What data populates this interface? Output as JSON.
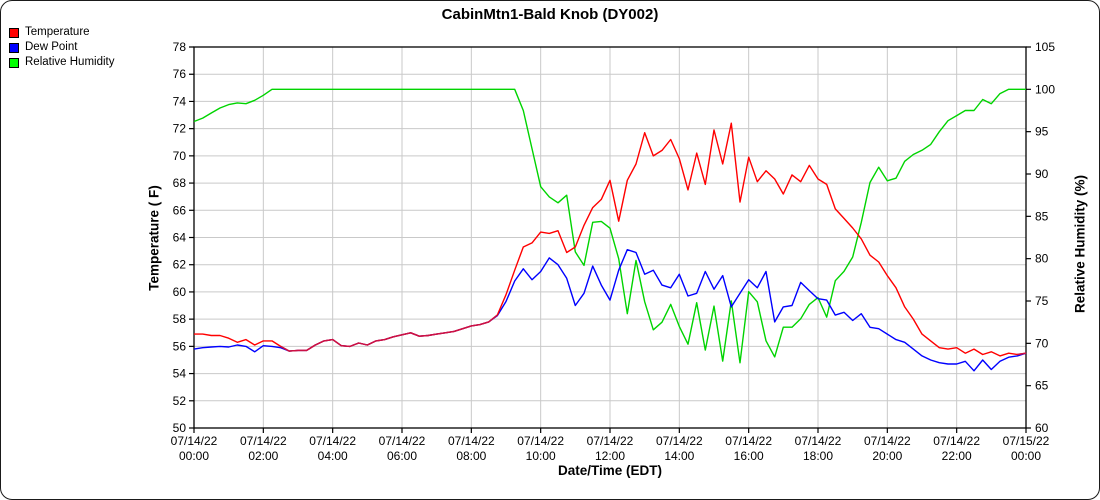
{
  "legend": {
    "items": [
      {
        "label": "Temperature",
        "color": "#ff0000"
      },
      {
        "label": "Dew Point",
        "color": "#0000ff"
      },
      {
        "label": "Relative Humidity",
        "color": "#00ff00"
      }
    ]
  },
  "chart_data": {
    "type": "line",
    "title": "CabinMtn1-Bald Knob (DY002)",
    "xlabel": "Date/Time (EDT)",
    "ylabel_left": "Temperature ( F)",
    "ylabel_right": "Relative Humidity (%)",
    "grid": true,
    "legend_position": "top-left",
    "x_start_hour": 0,
    "x_step_hours": 0.25,
    "x_ticks": [
      {
        "date": "07/14/22",
        "time": "00:00"
      },
      {
        "date": "07/14/22",
        "time": "02:00"
      },
      {
        "date": "07/14/22",
        "time": "04:00"
      },
      {
        "date": "07/14/22",
        "time": "06:00"
      },
      {
        "date": "07/14/22",
        "time": "08:00"
      },
      {
        "date": "07/14/22",
        "time": "10:00"
      },
      {
        "date": "07/14/22",
        "time": "12:00"
      },
      {
        "date": "07/14/22",
        "time": "14:00"
      },
      {
        "date": "07/14/22",
        "time": "16:00"
      },
      {
        "date": "07/14/22",
        "time": "18:00"
      },
      {
        "date": "07/14/22",
        "time": "20:00"
      },
      {
        "date": "07/14/22",
        "time": "22:00"
      },
      {
        "date": "07/15/22",
        "time": "00:00"
      }
    ],
    "y_left": {
      "min": 50,
      "max": 78,
      "tick_step": 2
    },
    "y_right": {
      "min": 60,
      "max": 105,
      "tick_step": 5
    },
    "overlap_color": "#cc1144",
    "grid_color": "#c9c9c9",
    "series": [
      {
        "name": "Temperature",
        "axis": "left",
        "color": "#ff0000",
        "values": [
          56.9,
          56.9,
          56.8,
          56.8,
          56.6,
          56.3,
          56.5,
          56.1,
          56.4,
          56.4,
          56.0,
          55.65,
          55.7,
          55.7,
          56.1,
          56.4,
          56.5,
          56.05,
          56.0,
          56.25,
          56.1,
          56.4,
          56.5,
          56.7,
          56.85,
          57.0,
          56.75,
          56.8,
          56.9,
          57.0,
          57.1,
          57.3,
          57.5,
          57.6,
          57.8,
          58.3,
          59.8,
          61.6,
          63.3,
          63.6,
          64.4,
          64.3,
          64.5,
          62.9,
          63.3,
          64.9,
          66.2,
          66.8,
          68.2,
          65.2,
          68.2,
          69.4,
          71.7,
          70.0,
          70.4,
          71.2,
          69.8,
          67.5,
          70.2,
          67.9,
          71.9,
          69.4,
          72.4,
          66.6,
          69.9,
          68.1,
          68.9,
          68.3,
          67.2,
          68.6,
          68.1,
          69.3,
          68.3,
          67.9,
          66.1,
          65.4,
          64.7,
          63.9,
          62.7,
          62.2,
          61.2,
          60.3,
          58.9,
          58.0,
          56.9,
          56.4,
          55.9,
          55.8,
          55.9,
          55.5,
          55.8,
          55.4,
          55.6,
          55.3,
          55.5,
          55.4,
          55.5
        ]
      },
      {
        "name": "Dew Point",
        "axis": "left",
        "color": "#0000ff",
        "values": [
          55.8,
          55.9,
          55.95,
          56.0,
          55.95,
          56.1,
          56.0,
          55.6,
          56.05,
          56.0,
          55.9,
          55.65,
          55.7,
          55.7,
          56.1,
          56.4,
          56.5,
          56.05,
          56.0,
          56.25,
          56.1,
          56.4,
          56.5,
          56.7,
          56.85,
          57.0,
          56.75,
          56.8,
          56.9,
          57.0,
          57.1,
          57.3,
          57.5,
          57.6,
          57.8,
          58.25,
          59.3,
          60.8,
          61.7,
          60.9,
          61.5,
          62.5,
          62.0,
          61.0,
          59.0,
          59.9,
          61.9,
          60.5,
          59.4,
          61.6,
          63.1,
          62.9,
          61.3,
          61.6,
          60.5,
          60.3,
          61.3,
          59.7,
          59.9,
          61.5,
          60.2,
          61.2,
          58.9,
          59.9,
          60.9,
          60.3,
          61.5,
          57.8,
          58.9,
          59.0,
          60.7,
          60.1,
          59.5,
          59.4,
          58.3,
          58.5,
          57.9,
          58.4,
          57.4,
          57.3,
          56.9,
          56.5,
          56.3,
          55.8,
          55.3,
          55.0,
          54.8,
          54.7,
          54.7,
          54.9,
          54.2,
          55.0,
          54.3,
          54.9,
          55.2,
          55.3,
          55.5
        ]
      },
      {
        "name": "Relative Humidity",
        "axis": "right",
        "color": "#00d400",
        "values": [
          96.2,
          96.6,
          97.2,
          97.8,
          98.2,
          98.4,
          98.3,
          98.7,
          99.3,
          100,
          100,
          100,
          100,
          100,
          100,
          100,
          100,
          100,
          100,
          100,
          100,
          100,
          100,
          100,
          100,
          100,
          100,
          100,
          100,
          100,
          100,
          100,
          100,
          100,
          100,
          100,
          100,
          100,
          97.5,
          93.0,
          88.5,
          87.3,
          86.6,
          87.5,
          80.8,
          79.2,
          84.3,
          84.4,
          83.6,
          80.0,
          73.5,
          79.8,
          74.9,
          71.6,
          72.5,
          74.6,
          72.0,
          69.9,
          74.8,
          69.2,
          74.4,
          67.9,
          75.0,
          67.7,
          76.1,
          74.9,
          70.3,
          68.4,
          71.9,
          71.9,
          72.9,
          74.6,
          75.4,
          73.1,
          77.4,
          78.5,
          80.2,
          84.3,
          89.0,
          90.8,
          89.2,
          89.5,
          91.5,
          92.3,
          92.8,
          93.5,
          95.0,
          96.3,
          96.9,
          97.5,
          97.5,
          98.8,
          98.3,
          99.5,
          100,
          100,
          100
        ]
      }
    ]
  }
}
